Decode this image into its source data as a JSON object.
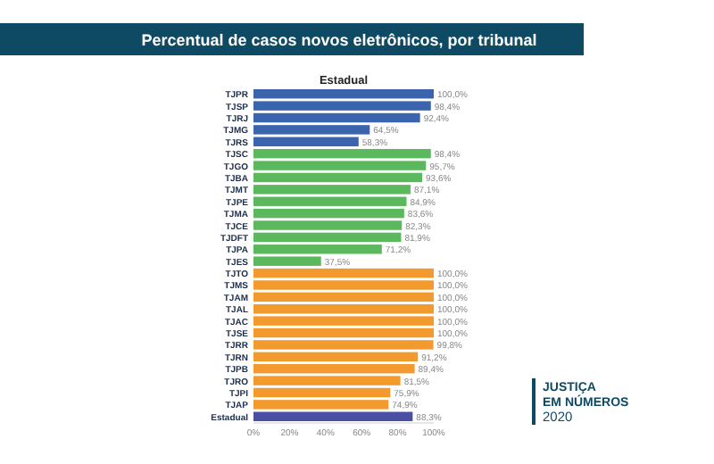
{
  "chart_data": {
    "type": "bar",
    "orientation": "horizontal",
    "title": "Percentual de casos novos eletrônicos, por tribunal",
    "subtitle": "Estadual",
    "categories": [
      "TJPR",
      "TJSP",
      "TJRJ",
      "TJMG",
      "TJRS",
      "TJSC",
      "TJGO",
      "TJBA",
      "TJMT",
      "TJPE",
      "TJMA",
      "TJCE",
      "TJDFT",
      "TJPA",
      "TJES",
      "TJTO",
      "TJMS",
      "TJAM",
      "TJAL",
      "TJAC",
      "TJSE",
      "TJRR",
      "TJRN",
      "TJPB",
      "TJRO",
      "TJPI",
      "TJAP",
      "Estadual"
    ],
    "values": [
      100.0,
      98.4,
      92.4,
      64.5,
      58.3,
      98.4,
      95.7,
      93.6,
      87.1,
      84.9,
      83.6,
      82.3,
      81.9,
      71.2,
      37.5,
      100.0,
      100.0,
      100.0,
      100.0,
      100.0,
      100.0,
      99.8,
      91.2,
      89.4,
      81.5,
      75.9,
      74.9,
      88.3
    ],
    "value_labels": [
      "100,0%",
      "98,4%",
      "92,4%",
      "64,5%",
      "58,3%",
      "98,4%",
      "95,7%",
      "93,6%",
      "87,1%",
      "84,9%",
      "83,6%",
      "82,3%",
      "81,9%",
      "71,2%",
      "37,5%",
      "100,0%",
      "100,0%",
      "100,0%",
      "100,0%",
      "100,0%",
      "100,0%",
      "99,8%",
      "91,2%",
      "89,4%",
      "81,5%",
      "75,9%",
      "74,9%",
      "88,3%"
    ],
    "colors": [
      "#3b64ae",
      "#3b64ae",
      "#3b64ae",
      "#3b64ae",
      "#3b64ae",
      "#5cb85c",
      "#5cb85c",
      "#5cb85c",
      "#5cb85c",
      "#5cb85c",
      "#5cb85c",
      "#5cb85c",
      "#5cb85c",
      "#5cb85c",
      "#5cb85c",
      "#f39a2e",
      "#f39a2e",
      "#f39a2e",
      "#f39a2e",
      "#f39a2e",
      "#f39a2e",
      "#f39a2e",
      "#f39a2e",
      "#f39a2e",
      "#f39a2e",
      "#f39a2e",
      "#f39a2e",
      "#4a4fa3"
    ],
    "xlim": [
      0,
      100
    ],
    "xticks": [
      {
        "value": 0,
        "label": "0%"
      },
      {
        "value": 20,
        "label": "20%"
      },
      {
        "value": 40,
        "label": "40%"
      },
      {
        "value": 60,
        "label": "60%"
      },
      {
        "value": 80,
        "label": "80%"
      },
      {
        "value": 100,
        "label": "100%"
      }
    ],
    "grid": false,
    "annotations": [
      "JUSTIÇA",
      "EM NÚMEROS",
      "2020"
    ]
  }
}
